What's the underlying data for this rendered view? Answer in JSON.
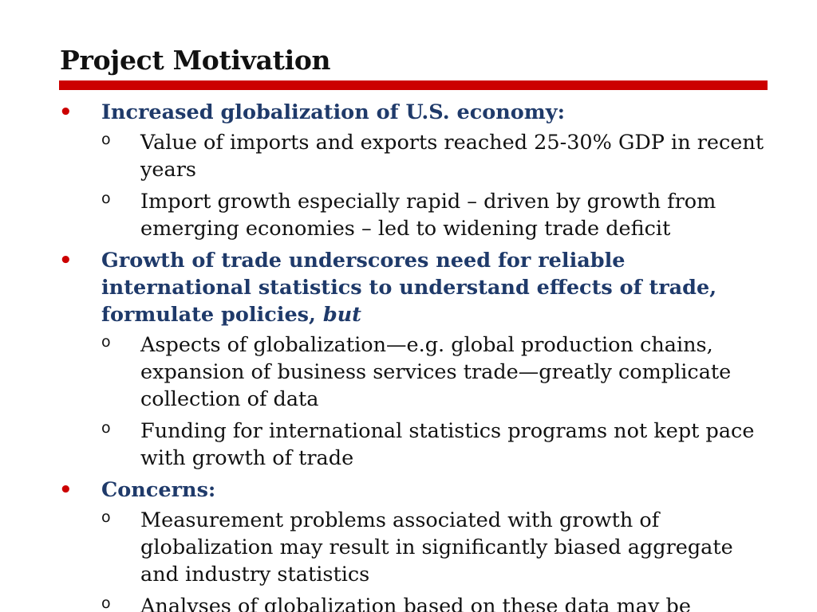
{
  "slide": {
    "title": "Project Motivation",
    "bullet_marker": "•",
    "sub_marker": "o",
    "accent_color": "#cc0000",
    "heading_color": "#1f3a6a",
    "bullets": [
      {
        "text": "Increased globalization of U.S. economy:",
        "subs": [
          "Value of imports and exports reached 25-30% GDP in recent years",
          "Import growth especially rapid – driven by growth from emerging economies – led to widening trade deficit"
        ]
      },
      {
        "text": "Growth of trade underscores need for reliable international statistics to understand effects of trade, formulate policies,",
        "text_italic": "but",
        "subs": [
          "Aspects of globalization—e.g. global production chains, expansion of business services trade—greatly complicate collection of data",
          "Funding for international statistics programs not kept pace with growth of trade"
        ]
      },
      {
        "text": "Concerns:",
        "subs": [
          "Measurement problems associated with growth of globalization may result in significantly biased aggregate and industry statistics",
          "Analyses of globalization based on these data may be"
        ]
      }
    ]
  }
}
